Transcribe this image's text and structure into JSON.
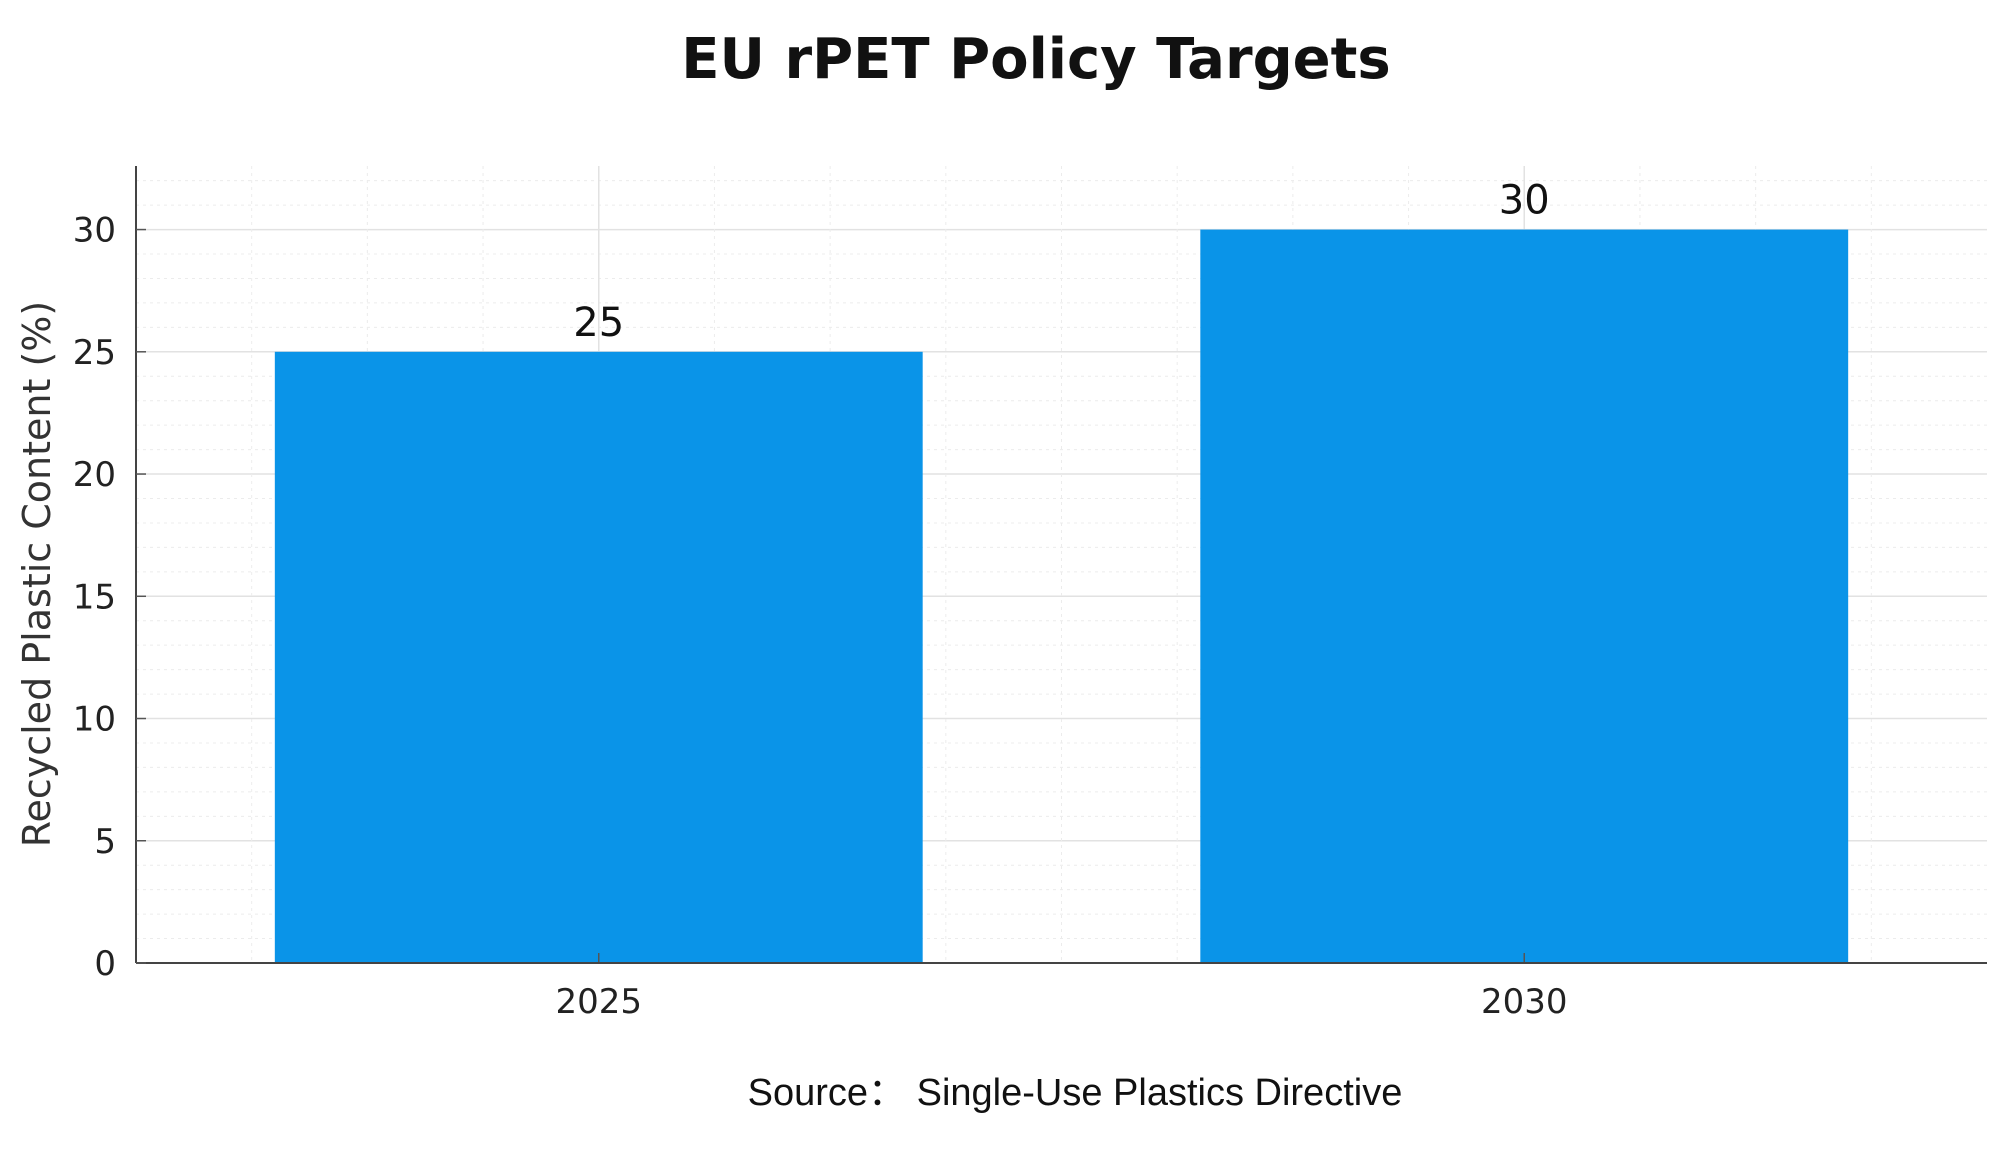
{
  "chart_data": {
    "type": "bar",
    "title": "EU rPET Policy Targets",
    "xlabel": "",
    "ylabel": "Recycled Plastic Content (%)",
    "categories": [
      "2025",
      "2030"
    ],
    "values": [
      25,
      30
    ],
    "data_labels": [
      "25",
      "30"
    ],
    "ylim": [
      0,
      32.6
    ],
    "yticks": [
      0,
      5,
      10,
      15,
      20,
      25,
      30
    ],
    "grid": true,
    "bar_color": "#0a94e8",
    "annotation": "Source：  Single-Use Plastics Directive"
  }
}
